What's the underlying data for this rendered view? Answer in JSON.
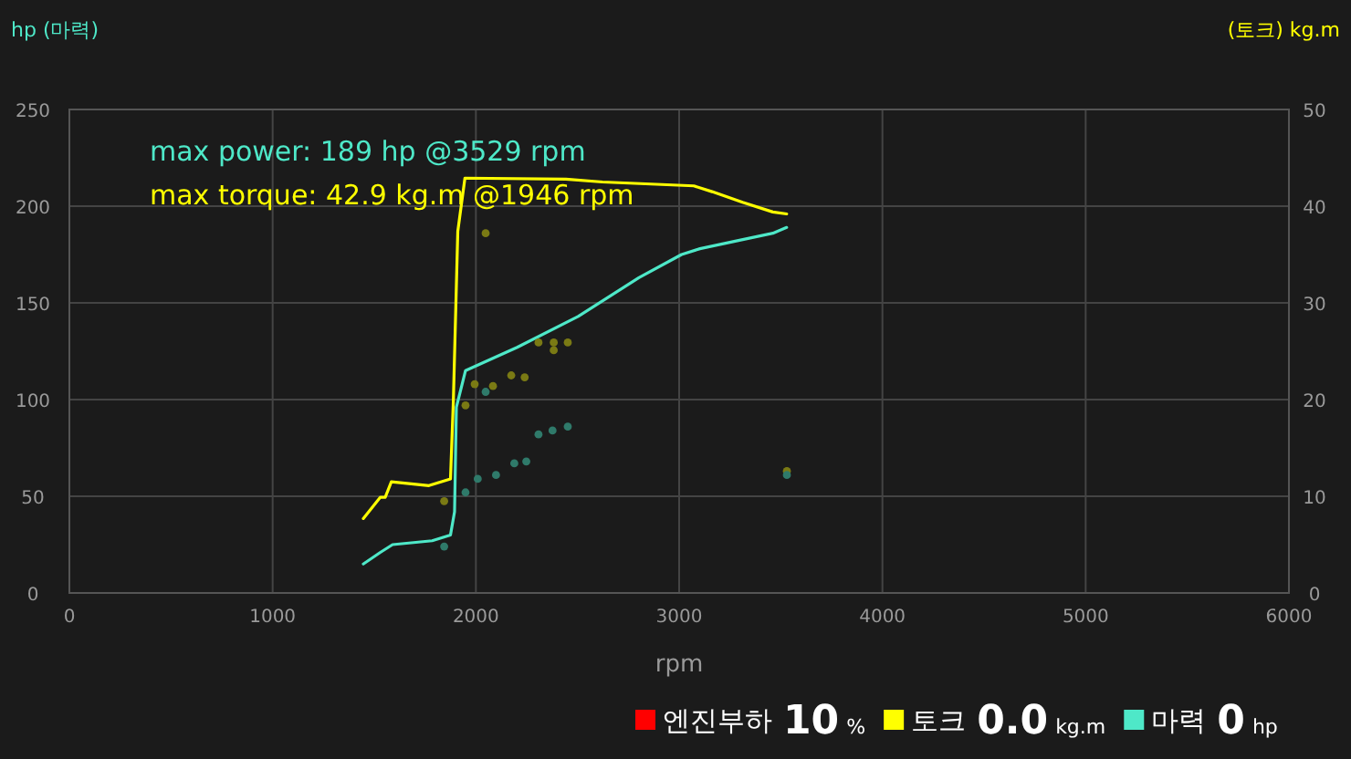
{
  "chart_data": {
    "type": "line",
    "xlabel": "rpm",
    "ylabel": "hp (마력)",
    "y2label": "(토크) kg.m",
    "xlim": [
      0,
      6000
    ],
    "xticks": [
      0,
      1000,
      2000,
      3000,
      4000,
      5000,
      6000
    ],
    "ylim": [
      0,
      250
    ],
    "yticks": [
      0,
      50,
      100,
      150,
      200,
      250
    ],
    "y2lim": [
      0,
      50
    ],
    "y2ticks": [
      0,
      10,
      20,
      30,
      40,
      50
    ],
    "grid": true,
    "legend": "bottom",
    "line_style": "solid",
    "series": [
      {
        "name": "토크",
        "color": "#ffff00",
        "axis": "y2",
        "x": [
          1446,
          1530,
          1554,
          1584,
          1769,
          1875,
          1889,
          1911,
          1946,
          2443,
          2623,
          3072,
          3162,
          3312,
          3461,
          3529
        ],
        "values": [
          7.7,
          9.9,
          9.9,
          11.5,
          11.1,
          11.8,
          19.8,
          37.4,
          42.9,
          42.8,
          42.5,
          42.1,
          41.5,
          40.4,
          39.4,
          39.2
        ]
      },
      {
        "name": "마력",
        "color": "#4ee8c8",
        "x": [
          1446,
          1530,
          1590,
          1785,
          1875,
          1895,
          1904,
          1949,
          2203,
          2503,
          2802,
          3012,
          3102,
          3281,
          3461,
          3529
        ],
        "values": [
          15,
          21,
          25,
          27,
          30,
          42,
          96,
          115,
          127,
          143,
          163,
          175,
          178,
          182,
          186,
          189
        ]
      },
      {
        "color": "#7a7a14",
        "axis": "y2",
        "type": "scatter",
        "marker": "circle",
        "x": [
          1844,
          1949,
          1994,
          2048,
          2084,
          2174,
          2240,
          2308,
          2383,
          2383,
          2452,
          3530
        ],
        "values": [
          9.5,
          19.4,
          21.6,
          37.2,
          21.4,
          22.5,
          22.3,
          25.9,
          25.9,
          25.1,
          25.9,
          12.6
        ]
      },
      {
        "color": "#2f7a6a",
        "type": "scatter",
        "marker": "circle",
        "x": [
          1844,
          1949,
          2009,
          2048,
          2099,
          2189,
          2248,
          2308,
          2377,
          2452,
          3530
        ],
        "values": [
          24,
          52,
          59,
          104,
          61,
          67,
          68,
          82,
          84,
          86,
          61
        ]
      }
    ],
    "annotations": [
      "max power: 189 hp @3529 rpm",
      "max torque: 42.9 kg.m @1946 rpm",
      "엔진부하",
      "10",
      "%",
      "0.0",
      "kg.m",
      "0",
      "hp"
    ]
  }
}
